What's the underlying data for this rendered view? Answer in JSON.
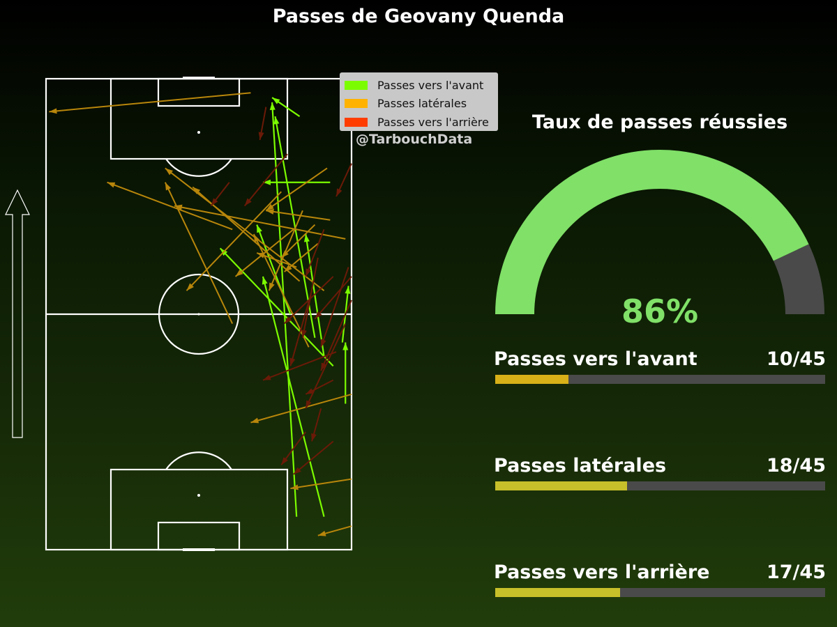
{
  "title": "Passes de Geovany Quenda",
  "watermark": "@TarbouchData",
  "legend": [
    {
      "label": "Passes vers l'avant",
      "color": "#7cfc00"
    },
    {
      "label": "Passes latérales",
      "color": "#ffb300"
    },
    {
      "label": "Passes vers l'arrière",
      "color": "#ff3d00"
    }
  ],
  "success_rate": {
    "title": "Taux de passes réussies",
    "value": 86,
    "label": "86%",
    "fill_color": "#80e068",
    "rest_color": "#4a4a4a"
  },
  "stats": [
    {
      "label": "Passes vers l'avant",
      "value": "10/45",
      "count": 10,
      "total": 45,
      "color": "#d8b018"
    },
    {
      "label": "Passes latérales",
      "value": "18/45",
      "count": 18,
      "total": 45,
      "color": "#c8c02a"
    },
    {
      "label": "Passes vers l'arrière",
      "value": "17/45",
      "count": 17,
      "total": 45,
      "color": "#c8c02a"
    }
  ],
  "chart_data": {
    "type": "pass_map",
    "title": "Passes de Geovany Quenda",
    "pitch": {
      "length": 100,
      "width": 100,
      "direction": "up"
    },
    "colors": {
      "forward": "#7cfc00",
      "lateral": "#b8860b",
      "backward": "#6b1a08"
    },
    "passes": [
      {
        "type": "forward",
        "x1": 82,
        "y1": 7,
        "x2": 74,
        "y2": 95
      },
      {
        "type": "forward",
        "x1": 91,
        "y1": 7,
        "x2": 71,
        "y2": 58
      },
      {
        "type": "forward",
        "x1": 91,
        "y1": 41,
        "x2": 85,
        "y2": 67
      },
      {
        "type": "forward",
        "x1": 97,
        "y1": 44,
        "x2": 99,
        "y2": 56
      },
      {
        "type": "forward",
        "x1": 88,
        "y1": 45,
        "x2": 75,
        "y2": 92
      },
      {
        "type": "forward",
        "x1": 94,
        "y1": 39,
        "x2": 57,
        "y2": 64
      },
      {
        "type": "forward",
        "x1": 80,
        "y1": 50,
        "x2": 69,
        "y2": 69
      },
      {
        "type": "forward",
        "x1": 93,
        "y1": 78,
        "x2": 71,
        "y2": 78
      },
      {
        "type": "forward",
        "x1": 83,
        "y1": 92,
        "x2": 74,
        "y2": 96
      },
      {
        "type": "forward",
        "x1": 98,
        "y1": 31,
        "x2": 98,
        "y2": 44
      },
      {
        "type": "lateral",
        "x1": 67,
        "y1": 97,
        "x2": 1,
        "y2": 93
      },
      {
        "type": "lateral",
        "x1": 61,
        "y1": 68,
        "x2": 20,
        "y2": 78
      },
      {
        "type": "lateral",
        "x1": 91,
        "y1": 55,
        "x2": 39,
        "y2": 81
      },
      {
        "type": "lateral",
        "x1": 93,
        "y1": 70,
        "x2": 72,
        "y2": 72
      },
      {
        "type": "lateral",
        "x1": 83,
        "y1": 57,
        "x2": 48,
        "y2": 77
      },
      {
        "type": "lateral",
        "x1": 98,
        "y1": 66,
        "x2": 42,
        "y2": 73
      },
      {
        "type": "lateral",
        "x1": 86,
        "y1": 43,
        "x2": 68,
        "y2": 67
      },
      {
        "type": "lateral",
        "x1": 100,
        "y1": 33,
        "x2": 67,
        "y2": 27
      },
      {
        "type": "lateral",
        "x1": 100,
        "y1": 15,
        "x2": 80,
        "y2": 13
      },
      {
        "type": "lateral",
        "x1": 100,
        "y1": 5,
        "x2": 89,
        "y2": 3
      },
      {
        "type": "lateral",
        "x1": 92,
        "y1": 81,
        "x2": 72,
        "y2": 72
      },
      {
        "type": "lateral",
        "x1": 88,
        "y1": 69,
        "x2": 77,
        "y2": 62
      },
      {
        "type": "lateral",
        "x1": 89,
        "y1": 65,
        "x2": 78,
        "y2": 59
      },
      {
        "type": "lateral",
        "x1": 82,
        "y1": 60,
        "x2": 69,
        "y2": 63
      },
      {
        "type": "lateral",
        "x1": 61,
        "y1": 48,
        "x2": 39,
        "y2": 78
      },
      {
        "type": "lateral",
        "x1": 77,
        "y1": 76,
        "x2": 46,
        "y2": 55
      },
      {
        "type": "lateral",
        "x1": 81,
        "y1": 68,
        "x2": 62,
        "y2": 58
      },
      {
        "type": "lateral",
        "x1": 84,
        "y1": 72,
        "x2": 73,
        "y2": 55
      },
      {
        "type": "backward",
        "x1": 72,
        "y1": 94,
        "x2": 70,
        "y2": 87
      },
      {
        "type": "backward",
        "x1": 79,
        "y1": 84,
        "x2": 65,
        "y2": 73
      },
      {
        "type": "backward",
        "x1": 60,
        "y1": 78,
        "x2": 54,
        "y2": 73
      },
      {
        "type": "backward",
        "x1": 100,
        "y1": 82,
        "x2": 95,
        "y2": 75
      },
      {
        "type": "backward",
        "x1": 91,
        "y1": 68,
        "x2": 85,
        "y2": 58
      },
      {
        "type": "backward",
        "x1": 99,
        "y1": 60,
        "x2": 90,
        "y2": 43
      },
      {
        "type": "backward",
        "x1": 89,
        "y1": 62,
        "x2": 84,
        "y2": 45
      },
      {
        "type": "backward",
        "x1": 95,
        "y1": 42,
        "x2": 71,
        "y2": 36
      },
      {
        "type": "backward",
        "x1": 94,
        "y1": 58,
        "x2": 78,
        "y2": 48
      },
      {
        "type": "backward",
        "x1": 87,
        "y1": 55,
        "x2": 80,
        "y2": 39
      },
      {
        "type": "backward",
        "x1": 94,
        "y1": 36,
        "x2": 85,
        "y2": 33
      },
      {
        "type": "backward",
        "x1": 100,
        "y1": 58,
        "x2": 88,
        "y2": 49
      },
      {
        "type": "backward",
        "x1": 100,
        "y1": 53,
        "x2": 90,
        "y2": 38
      },
      {
        "type": "backward",
        "x1": 98,
        "y1": 48,
        "x2": 85,
        "y2": 30
      },
      {
        "type": "backward",
        "x1": 94,
        "y1": 23,
        "x2": 81,
        "y2": 16
      },
      {
        "type": "backward",
        "x1": 90,
        "y1": 30,
        "x2": 87,
        "y2": 23
      },
      {
        "type": "backward",
        "x1": 85,
        "y1": 25,
        "x2": 77,
        "y2": 18
      }
    ]
  }
}
